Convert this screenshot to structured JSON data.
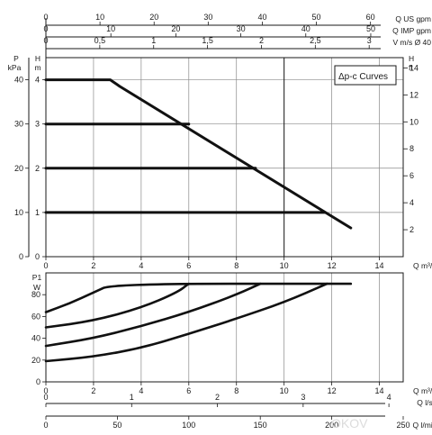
{
  "chart_data": [
    {
      "type": "line",
      "legend": "Δp-c Curves",
      "y_left_outer": {
        "label": "P",
        "unit": "kPa",
        "range": [
          0,
          45
        ],
        "ticks": [
          0,
          10,
          20,
          30,
          40
        ]
      },
      "y_left_inner": {
        "label": "H",
        "unit": "m",
        "range": [
          0,
          4.5
        ],
        "ticks": [
          0,
          1,
          2,
          3,
          4
        ]
      },
      "y_right": {
        "label": "H",
        "unit": "ft",
        "range": [
          0,
          14.76
        ],
        "ticks": [
          2,
          4,
          6,
          8,
          10,
          12,
          14
        ]
      },
      "x_bottom": {
        "label": "Q m³/h",
        "range": [
          0,
          15
        ],
        "ticks": [
          0,
          2,
          4,
          6,
          8,
          10,
          12,
          14
        ]
      },
      "x_top_axes": [
        {
          "label": "Q US gpm",
          "ticks": [
            0,
            10,
            20,
            30,
            40,
            50,
            60
          ]
        },
        {
          "label": "Q IMP gpm",
          "ticks": [
            0,
            10,
            20,
            30,
            40,
            50
          ]
        },
        {
          "label": "V m/s Ø 40",
          "ticks": [
            "0",
            "0,5",
            "1",
            "1,5",
            "2",
            "2,5",
            "3"
          ]
        }
      ],
      "reference_line_q": 10,
      "series": [
        {
          "name": "4",
          "points": [
            [
              0,
              4
            ],
            [
              2.7,
              4
            ],
            [
              3.1,
              3.85
            ],
            [
              12.8,
              0.65
            ]
          ]
        },
        {
          "name": "3",
          "points": [
            [
              0,
              3
            ],
            [
              6.0,
              3
            ]
          ]
        },
        {
          "name": "2",
          "points": [
            [
              0,
              2
            ],
            [
              8.8,
              2
            ]
          ]
        },
        {
          "name": "1",
          "points": [
            [
              0,
              1
            ],
            [
              11.7,
              1
            ]
          ]
        }
      ]
    },
    {
      "type": "line",
      "y_axis": {
        "label": "P1",
        "unit": "W",
        "range": [
          0,
          100
        ],
        "ticks": [
          0,
          20,
          40,
          60,
          80
        ]
      },
      "x_bottom": {
        "label": "Q m³/h",
        "range": [
          0,
          15
        ],
        "ticks": [
          0,
          2,
          4,
          6,
          8,
          10,
          12,
          14
        ]
      },
      "x_extra_axes": [
        {
          "label": "Q l/s",
          "ticks": [
            0,
            1,
            2,
            3,
            4
          ]
        },
        {
          "label": "Q l/min",
          "ticks": [
            0,
            50,
            100,
            150,
            200,
            250
          ]
        }
      ],
      "series": [
        {
          "points": [
            [
              0,
              64
            ],
            [
              1,
              72
            ],
            [
              2,
              82
            ],
            [
              2.8,
              90
            ],
            [
              12.8,
              90
            ]
          ]
        },
        {
          "points": [
            [
              0,
              50
            ],
            [
              2,
              56
            ],
            [
              4,
              68
            ],
            [
              5.5,
              82
            ],
            [
              6,
              90
            ]
          ]
        },
        {
          "points": [
            [
              0,
              33
            ],
            [
              2,
              40
            ],
            [
              4,
              51
            ],
            [
              6,
              64
            ],
            [
              8,
              80
            ],
            [
              9,
              90
            ]
          ]
        },
        {
          "points": [
            [
              0,
              19
            ],
            [
              2,
              23
            ],
            [
              4,
              31
            ],
            [
              6,
              44
            ],
            [
              8,
              58
            ],
            [
              10,
              73
            ],
            [
              11.8,
              90
            ]
          ]
        }
      ]
    }
  ]
}
